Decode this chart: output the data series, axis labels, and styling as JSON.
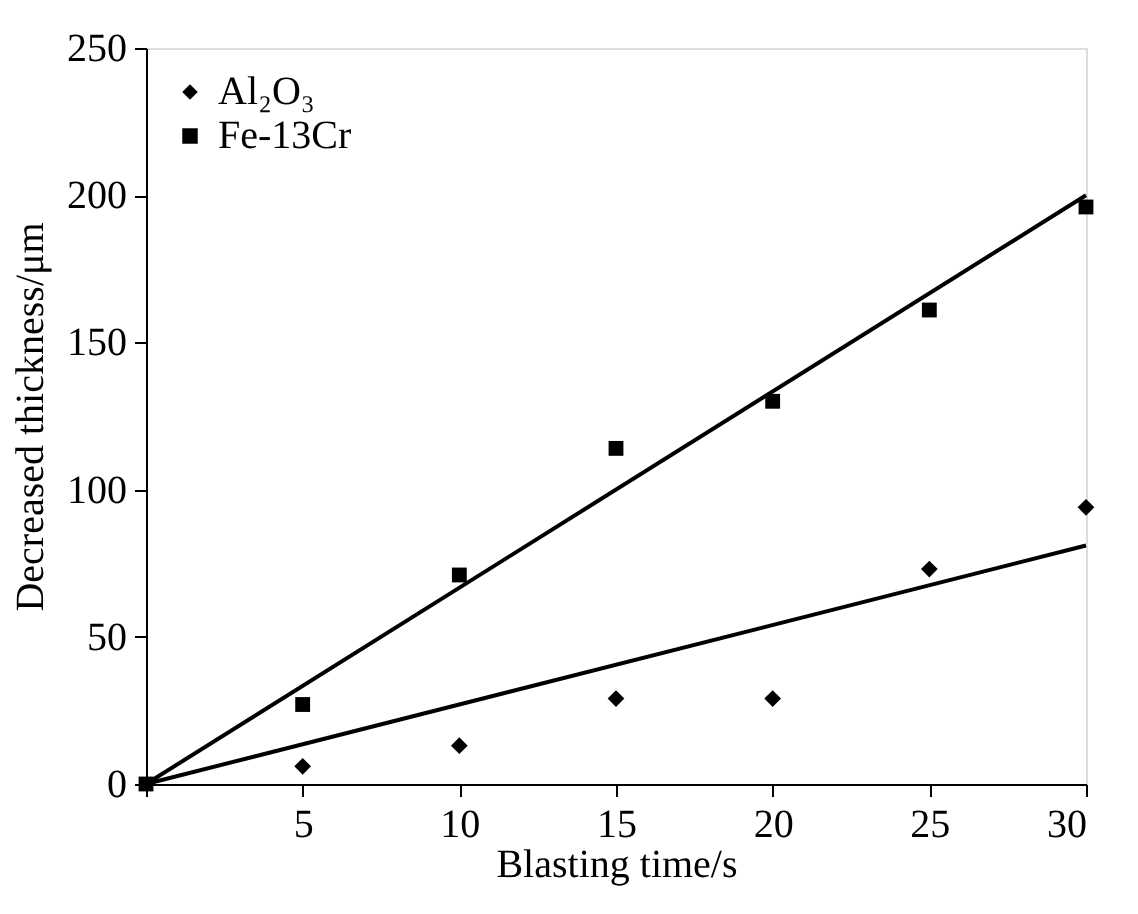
{
  "chart_data": {
    "type": "scatter",
    "xlabel": "Blasting time/s",
    "ylabel": "Decreased thickness/μm",
    "xlim": [
      0,
      30
    ],
    "ylim": [
      0,
      250
    ],
    "xticks": [
      {
        "value": 0,
        "label": null
      },
      5,
      10,
      15,
      20,
      25,
      30
    ],
    "yticks": [
      0,
      50,
      100,
      150,
      200,
      250
    ],
    "grid": false,
    "legend": "top left",
    "series": [
      {
        "name": "Al₂O₃",
        "marker": "diamond",
        "color": "#000000",
        "x": [
          5,
          10,
          15,
          20,
          25,
          30
        ],
        "values": [
          6,
          13,
          29,
          29,
          73,
          94
        ]
      },
      {
        "name": "Fe-13Cr",
        "marker": "square",
        "color": "#000000",
        "x": [
          0,
          5,
          10,
          15,
          20,
          25,
          30
        ],
        "values": [
          0,
          27,
          71,
          114,
          130,
          161,
          196
        ]
      },
      {
        "type": "line",
        "marker": "none",
        "line_style": "solid",
        "color": "#000000",
        "x": [
          0,
          30
        ],
        "values": [
          0,
          81
        ]
      },
      {
        "type": "line",
        "marker": "none",
        "line_style": "solid",
        "color": "#000000",
        "x": [
          0,
          30
        ],
        "values": [
          0,
          200
        ]
      }
    ]
  }
}
